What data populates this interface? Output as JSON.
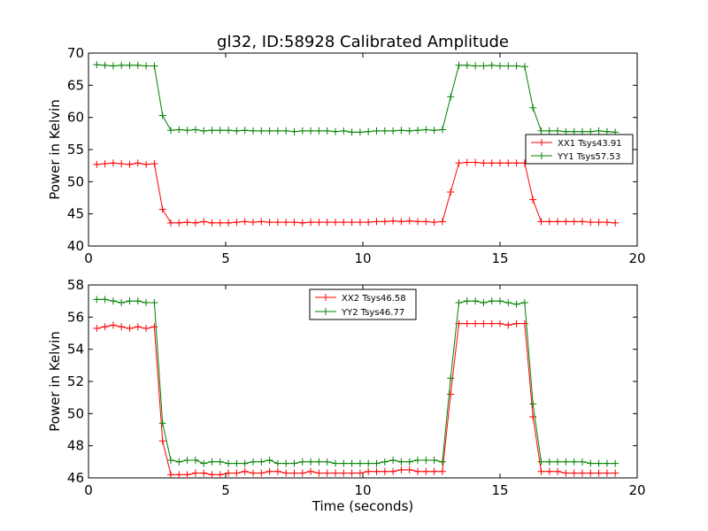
{
  "chart_data": [
    {
      "type": "line",
      "title": "gl32, ID:58928 Calibrated Amplitude",
      "xlabel": "",
      "ylabel": "Power in Kelvin",
      "xlim": [
        0,
        20
      ],
      "ylim": [
        40,
        70
      ],
      "xticks": [
        "0",
        "5",
        "10",
        "15",
        "20"
      ],
      "yticks": [
        "40",
        "45",
        "50",
        "55",
        "60",
        "65",
        "70"
      ],
      "xtick_values": [
        0,
        5,
        10,
        15,
        20
      ],
      "ytick_values": [
        40,
        45,
        50,
        55,
        60,
        65,
        70
      ],
      "grid": false,
      "legend_position": "center-right",
      "x": [
        0.3,
        0.6,
        0.9,
        1.2,
        1.5,
        1.8,
        2.1,
        2.4,
        2.7,
        3.0,
        3.3,
        3.6,
        3.9,
        4.2,
        4.5,
        4.8,
        5.1,
        5.4,
        5.7,
        6.0,
        6.3,
        6.6,
        6.9,
        7.2,
        7.5,
        7.8,
        8.1,
        8.4,
        8.7,
        9.0,
        9.3,
        9.6,
        9.9,
        10.2,
        10.5,
        10.8,
        11.1,
        11.4,
        11.7,
        12.0,
        12.3,
        12.6,
        12.9,
        13.2,
        13.5,
        13.8,
        14.1,
        14.4,
        14.7,
        15.0,
        15.3,
        15.6,
        15.9,
        16.2,
        16.5,
        16.8,
        17.1,
        17.4,
        17.7,
        18.0,
        18.3,
        18.6,
        18.9,
        19.2
      ],
      "series": [
        {
          "name": "XX1 Tsys43.91",
          "color": "#ff0000",
          "values": [
            52.7,
            52.8,
            52.9,
            52.8,
            52.7,
            52.9,
            52.7,
            52.8,
            45.7,
            43.6,
            43.6,
            43.7,
            43.6,
            43.8,
            43.6,
            43.6,
            43.6,
            43.7,
            43.8,
            43.7,
            43.8,
            43.7,
            43.7,
            43.7,
            43.7,
            43.6,
            43.7,
            43.7,
            43.7,
            43.7,
            43.7,
            43.7,
            43.7,
            43.7,
            43.8,
            43.8,
            43.9,
            43.8,
            43.9,
            43.8,
            43.8,
            43.7,
            43.8,
            48.4,
            52.9,
            53.0,
            53.0,
            52.9,
            52.9,
            52.9,
            52.9,
            52.9,
            52.9,
            47.2,
            43.8,
            43.8,
            43.8,
            43.8,
            43.8,
            43.8,
            43.7,
            43.7,
            43.7,
            43.6
          ]
        },
        {
          "name": "YY1 Tsys57.53",
          "color": "#008000",
          "values": [
            68.2,
            68.1,
            68.0,
            68.1,
            68.1,
            68.1,
            68.0,
            68.0,
            60.3,
            58.0,
            58.1,
            58.0,
            58.1,
            57.9,
            58.0,
            58.0,
            58.0,
            57.9,
            58.0,
            57.9,
            57.9,
            57.9,
            57.9,
            57.9,
            57.8,
            57.9,
            57.9,
            57.9,
            57.9,
            57.8,
            57.9,
            57.7,
            57.7,
            57.8,
            57.9,
            57.9,
            57.9,
            58.0,
            57.9,
            58.0,
            58.1,
            58.0,
            58.1,
            63.2,
            68.1,
            68.1,
            68.0,
            68.0,
            68.1,
            68.0,
            68.0,
            68.0,
            67.9,
            61.5,
            57.9,
            57.9,
            57.9,
            57.8,
            57.8,
            57.8,
            57.8,
            57.9,
            57.8,
            57.7
          ]
        }
      ]
    },
    {
      "type": "line",
      "title": "",
      "xlabel": "Time (seconds)",
      "ylabel": "Power in Kelvin",
      "xlim": [
        0,
        20
      ],
      "ylim": [
        46,
        58
      ],
      "xticks": [
        "0",
        "5",
        "10",
        "15",
        "20"
      ],
      "yticks": [
        "46",
        "48",
        "50",
        "52",
        "54",
        "56",
        "58"
      ],
      "xtick_values": [
        0,
        5,
        10,
        15,
        20
      ],
      "ytick_values": [
        46,
        48,
        50,
        52,
        54,
        56,
        58
      ],
      "grid": false,
      "legend_position": "top-center",
      "x": [
        0.3,
        0.6,
        0.9,
        1.2,
        1.5,
        1.8,
        2.1,
        2.4,
        2.7,
        3.0,
        3.3,
        3.6,
        3.9,
        4.2,
        4.5,
        4.8,
        5.1,
        5.4,
        5.7,
        6.0,
        6.3,
        6.6,
        6.9,
        7.2,
        7.5,
        7.8,
        8.1,
        8.4,
        8.7,
        9.0,
        9.3,
        9.6,
        9.9,
        10.2,
        10.5,
        10.8,
        11.1,
        11.4,
        11.7,
        12.0,
        12.3,
        12.6,
        12.9,
        13.2,
        13.5,
        13.8,
        14.1,
        14.4,
        14.7,
        15.0,
        15.3,
        15.6,
        15.9,
        16.2,
        16.5,
        16.8,
        17.1,
        17.4,
        17.7,
        18.0,
        18.3,
        18.6,
        18.9,
        19.2
      ],
      "series": [
        {
          "name": "XX2 Tsys46.58",
          "color": "#ff0000",
          "values": [
            55.3,
            55.4,
            55.5,
            55.4,
            55.3,
            55.4,
            55.3,
            55.4,
            48.3,
            46.2,
            46.2,
            46.2,
            46.3,
            46.3,
            46.2,
            46.2,
            46.3,
            46.3,
            46.4,
            46.3,
            46.3,
            46.4,
            46.4,
            46.3,
            46.3,
            46.3,
            46.4,
            46.3,
            46.3,
            46.3,
            46.3,
            46.3,
            46.3,
            46.4,
            46.4,
            46.4,
            46.4,
            46.5,
            46.5,
            46.4,
            46.4,
            46.4,
            46.4,
            51.2,
            55.6,
            55.6,
            55.6,
            55.6,
            55.6,
            55.6,
            55.5,
            55.6,
            55.6,
            49.8,
            46.4,
            46.4,
            46.4,
            46.3,
            46.3,
            46.3,
            46.3,
            46.3,
            46.3,
            46.3
          ]
        },
        {
          "name": "YY2 Tsys46.77",
          "color": "#008000",
          "values": [
            57.1,
            57.1,
            57.0,
            56.9,
            57.0,
            57.0,
            56.9,
            56.9,
            49.4,
            47.1,
            47.0,
            47.1,
            47.1,
            46.9,
            47.0,
            47.0,
            46.9,
            46.9,
            46.9,
            47.0,
            47.0,
            47.1,
            46.9,
            46.9,
            46.9,
            47.0,
            47.0,
            47.0,
            47.0,
            46.9,
            46.9,
            46.9,
            46.9,
            46.9,
            46.9,
            47.0,
            47.1,
            47.0,
            47.0,
            47.1,
            47.1,
            47.1,
            47.0,
            52.2,
            56.9,
            57.0,
            57.0,
            56.9,
            57.0,
            57.0,
            56.9,
            56.8,
            56.9,
            50.6,
            47.0,
            47.0,
            47.0,
            47.0,
            47.0,
            47.0,
            46.9,
            46.9,
            46.9,
            46.9
          ]
        }
      ]
    }
  ]
}
